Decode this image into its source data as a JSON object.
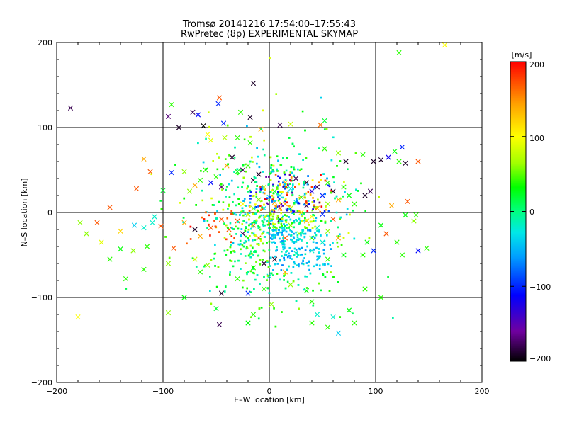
{
  "chart_data": {
    "type": "scatter",
    "title": "Tromsø 20141216 17:54:00–17:55:43",
    "subtitle": "RwPretec (8p) EXPERIMENTAL SKYMAP",
    "xlabel": "E–W location [km]",
    "ylabel": "N–S location [km]",
    "xlim": [
      -200,
      200
    ],
    "ylim": [
      -200,
      200
    ],
    "xticks": [
      "−200",
      "−100",
      "0",
      "100",
      "200"
    ],
    "yticks": [
      "−200",
      "−100",
      "0",
      "100",
      "200"
    ],
    "grid": true,
    "colorbar": {
      "label": "[m/s]",
      "range": [
        -200,
        200
      ],
      "ticks": [
        "200",
        "100",
        "0",
        "−100",
        "−200"
      ],
      "tick_values": [
        200,
        100,
        0,
        -100,
        -200
      ],
      "colors": [
        "#000000",
        "#7000a0",
        "#0000ff",
        "#00a0ff",
        "#00e8e8",
        "#00ff80",
        "#00ff00",
        "#a0ff00",
        "#ffff00",
        "#ffa000",
        "#ff0000"
      ]
    },
    "markers": {
      "small": "dot",
      "large": "x"
    },
    "points": [
      [
        -187,
        123,
        -180,
        "x"
      ],
      [
        -118,
        63,
        140,
        "x"
      ],
      [
        -95,
        113,
        -170,
        "x"
      ],
      [
        -92,
        127,
        40,
        "x"
      ],
      [
        -85,
        100,
        -190,
        "x"
      ],
      [
        -72,
        118,
        -180,
        "x"
      ],
      [
        -67,
        115,
        -110,
        "x"
      ],
      [
        -47,
        135,
        170,
        "x"
      ],
      [
        -48,
        128,
        -100,
        "x"
      ],
      [
        -43,
        105,
        -100,
        "x"
      ],
      [
        -27,
        118,
        40,
        "x"
      ],
      [
        -18,
        112,
        -190,
        "x"
      ],
      [
        -15,
        152,
        -190,
        "x"
      ],
      [
        -8,
        98,
        140,
        "x"
      ],
      [
        10,
        103,
        -180,
        "x"
      ],
      [
        20,
        104,
        80,
        "x"
      ],
      [
        48,
        103,
        160,
        "x"
      ],
      [
        52,
        108,
        20,
        "x"
      ],
      [
        -62,
        102,
        -200,
        "x"
      ],
      [
        -58,
        92,
        100,
        "x"
      ],
      [
        -55,
        85,
        90,
        "x"
      ],
      [
        -42,
        88,
        70,
        "x"
      ],
      [
        -30,
        88,
        40,
        "x"
      ],
      [
        -18,
        82,
        40,
        "x"
      ],
      [
        -150,
        6,
        170,
        "x"
      ],
      [
        -178,
        -12,
        60,
        "x"
      ],
      [
        -162,
        -12,
        170,
        "x"
      ],
      [
        -172,
        -25,
        60,
        "x"
      ],
      [
        -158,
        -35,
        90,
        "x"
      ],
      [
        -140,
        -22,
        120,
        "x"
      ],
      [
        -127,
        -15,
        -40,
        "x"
      ],
      [
        -118,
        -18,
        -20,
        "x"
      ],
      [
        -102,
        -16,
        170,
        "x"
      ],
      [
        -140,
        -43,
        30,
        "x"
      ],
      [
        -128,
        -45,
        60,
        "x"
      ],
      [
        -118,
        -67,
        40,
        "x"
      ],
      [
        -150,
        -55,
        40,
        "x"
      ],
      [
        -180,
        -123,
        100,
        "x"
      ],
      [
        -125,
        28,
        170,
        "x"
      ],
      [
        -112,
        48,
        170,
        "x"
      ],
      [
        -100,
        26,
        20,
        "x"
      ],
      [
        -92,
        47,
        -100,
        "x"
      ],
      [
        -80,
        48,
        60,
        "x"
      ],
      [
        -75,
        25,
        60,
        "x"
      ],
      [
        -70,
        32,
        140,
        "x"
      ],
      [
        -65,
        38,
        40,
        "x"
      ],
      [
        -60,
        50,
        40,
        "x"
      ],
      [
        -55,
        35,
        -110,
        "x"
      ],
      [
        -50,
        42,
        40,
        "x"
      ],
      [
        -45,
        30,
        -170,
        "x"
      ],
      [
        -40,
        55,
        140,
        "x"
      ],
      [
        -35,
        65,
        -190,
        "x"
      ],
      [
        -30,
        48,
        30,
        "x"
      ],
      [
        -25,
        50,
        -180,
        "x"
      ],
      [
        -20,
        55,
        40,
        "x"
      ],
      [
        -15,
        38,
        -190,
        "x"
      ],
      [
        -10,
        45,
        -190,
        "x"
      ],
      [
        -5,
        30,
        70,
        "x"
      ],
      [
        5,
        25,
        20,
        "x"
      ],
      [
        10,
        20,
        -40,
        "x"
      ],
      [
        15,
        35,
        140,
        "x"
      ],
      [
        20,
        28,
        -30,
        "x"
      ],
      [
        25,
        40,
        -180,
        "x"
      ],
      [
        30,
        18,
        40,
        "x"
      ],
      [
        35,
        35,
        -190,
        "x"
      ],
      [
        40,
        25,
        -130,
        "x"
      ],
      [
        45,
        30,
        -180,
        "x"
      ],
      [
        50,
        20,
        -100,
        "x"
      ],
      [
        55,
        35,
        40,
        "x"
      ],
      [
        60,
        25,
        -190,
        "x"
      ],
      [
        65,
        15,
        140,
        "x"
      ],
      [
        70,
        30,
        40,
        "x"
      ],
      [
        75,
        20,
        30,
        "x"
      ],
      [
        80,
        10,
        40,
        "x"
      ],
      [
        90,
        20,
        -190,
        "x"
      ],
      [
        95,
        25,
        -180,
        "x"
      ],
      [
        52,
        75,
        40,
        "x"
      ],
      [
        65,
        70,
        60,
        "x"
      ],
      [
        72,
        60,
        -190,
        "x"
      ],
      [
        88,
        68,
        40,
        "x"
      ],
      [
        98,
        60,
        -190,
        "x"
      ],
      [
        105,
        62,
        -190,
        "x"
      ],
      [
        112,
        65,
        -120,
        "x"
      ],
      [
        122,
        60,
        40,
        "x"
      ],
      [
        128,
        58,
        -190,
        "x"
      ],
      [
        140,
        60,
        170,
        "x"
      ],
      [
        125,
        77,
        -100,
        "x"
      ],
      [
        118,
        72,
        30,
        "x"
      ],
      [
        148,
        -42,
        40,
        "x"
      ],
      [
        140,
        -45,
        -110,
        "x"
      ],
      [
        136,
        -10,
        60,
        "x"
      ],
      [
        128,
        -3,
        30,
        "x"
      ],
      [
        138,
        -3,
        40,
        "x"
      ],
      [
        130,
        13,
        170,
        "x"
      ],
      [
        115,
        8,
        140,
        "x"
      ],
      [
        110,
        -25,
        170,
        "x"
      ],
      [
        105,
        -15,
        30,
        "x"
      ],
      [
        98,
        -45,
        -100,
        "x"
      ],
      [
        92,
        -35,
        30,
        "x"
      ],
      [
        88,
        -50,
        40,
        "x"
      ],
      [
        -80,
        -12,
        140,
        "x"
      ],
      [
        -70,
        -20,
        -190,
        "x"
      ],
      [
        -65,
        -28,
        140,
        "x"
      ],
      [
        -55,
        -18,
        170,
        "x"
      ],
      [
        -45,
        -8,
        170,
        "x"
      ],
      [
        -38,
        -20,
        170,
        "x"
      ],
      [
        -30,
        -10,
        170,
        "x"
      ],
      [
        -25,
        -25,
        -180,
        "x"
      ],
      [
        -15,
        -15,
        170,
        "x"
      ],
      [
        -10,
        -30,
        170,
        "x"
      ],
      [
        0,
        -12,
        -180,
        "x"
      ],
      [
        5,
        -20,
        60,
        "x"
      ],
      [
        10,
        -8,
        -190,
        "x"
      ],
      [
        15,
        -30,
        170,
        "x"
      ],
      [
        20,
        -15,
        60,
        "x"
      ],
      [
        28,
        -25,
        60,
        "x"
      ],
      [
        35,
        -10,
        140,
        "x"
      ],
      [
        40,
        -30,
        40,
        "x"
      ],
      [
        45,
        -18,
        -20,
        "x"
      ],
      [
        50,
        -35,
        -20,
        "x"
      ],
      [
        55,
        -22,
        60,
        "x"
      ],
      [
        60,
        -8,
        170,
        "x"
      ],
      [
        65,
        -30,
        140,
        "x"
      ],
      [
        -5,
        -60,
        -190,
        "x"
      ],
      [
        5,
        -55,
        -190,
        "x"
      ],
      [
        -15,
        -65,
        40,
        "x"
      ],
      [
        0,
        -75,
        -20,
        "x"
      ],
      [
        15,
        -70,
        140,
        "x"
      ],
      [
        25,
        -48,
        -20,
        "x"
      ],
      [
        40,
        -45,
        -20,
        "x"
      ],
      [
        55,
        -55,
        40,
        "x"
      ],
      [
        70,
        -50,
        30,
        "x"
      ],
      [
        -30,
        -78,
        40,
        "x"
      ],
      [
        -20,
        -95,
        -100,
        "x"
      ],
      [
        -5,
        -90,
        40,
        "x"
      ],
      [
        20,
        -85,
        60,
        "x"
      ],
      [
        35,
        -92,
        30,
        "x"
      ],
      [
        -45,
        -95,
        -190,
        "x"
      ],
      [
        -50,
        -113,
        20,
        "x"
      ],
      [
        -15,
        -120,
        40,
        "x"
      ],
      [
        2,
        -108,
        60,
        "x"
      ],
      [
        40,
        -105,
        40,
        "x"
      ],
      [
        45,
        -120,
        -20,
        "x"
      ],
      [
        60,
        -123,
        -20,
        "x"
      ],
      [
        75,
        -115,
        30,
        "x"
      ],
      [
        55,
        -135,
        40,
        "x"
      ],
      [
        65,
        -142,
        -40,
        "x"
      ],
      [
        80,
        -130,
        40,
        "x"
      ],
      [
        40,
        -130,
        40,
        "x"
      ],
      [
        -47,
        -132,
        -180,
        "x"
      ],
      [
        -20,
        -130,
        30,
        "x"
      ],
      [
        10,
        5,
        170,
        "x"
      ],
      [
        15,
        10,
        140,
        "x"
      ],
      [
        20,
        5,
        80,
        "x"
      ],
      [
        25,
        12,
        -30,
        "x"
      ],
      [
        30,
        0,
        100,
        "x"
      ],
      [
        35,
        8,
        -180,
        "x"
      ],
      [
        -5,
        5,
        -30,
        "x"
      ],
      [
        0,
        18,
        -20,
        "x"
      ],
      [
        5,
        12,
        140,
        "x"
      ],
      [
        -10,
        15,
        60,
        "x"
      ],
      [
        -15,
        5,
        60,
        "x"
      ],
      [
        -20,
        -2,
        60,
        "x"
      ],
      [
        -25,
        10,
        100,
        "x"
      ],
      [
        45,
        5,
        140,
        "x"
      ],
      [
        50,
        -2,
        -100,
        "x"
      ],
      [
        55,
        10,
        60,
        "x"
      ],
      [
        40,
        -5,
        100,
        "x"
      ],
      [
        -70,
        -55,
        80,
        "x"
      ],
      [
        -58,
        -62,
        60,
        "x"
      ],
      [
        -95,
        -60,
        60,
        "x"
      ],
      [
        -80,
        -100,
        30,
        "x"
      ],
      [
        -95,
        -118,
        60,
        "x"
      ],
      [
        90,
        -90,
        40,
        "x"
      ],
      [
        105,
        -100,
        40,
        "x"
      ],
      [
        -115,
        -40,
        40,
        "x"
      ],
      [
        -135,
        -78,
        40,
        "x"
      ],
      [
        120,
        -35,
        40,
        "x"
      ],
      [
        125,
        -50,
        40,
        "x"
      ],
      [
        122,
        188,
        40,
        "x"
      ],
      [
        165,
        197,
        100,
        "x"
      ],
      [
        -108,
        -5,
        -20,
        "x"
      ],
      [
        -110,
        -12,
        -20,
        "x"
      ],
      [
        -90,
        -42,
        170,
        "x"
      ],
      [
        -65,
        -70,
        40,
        "x"
      ]
    ]
  }
}
